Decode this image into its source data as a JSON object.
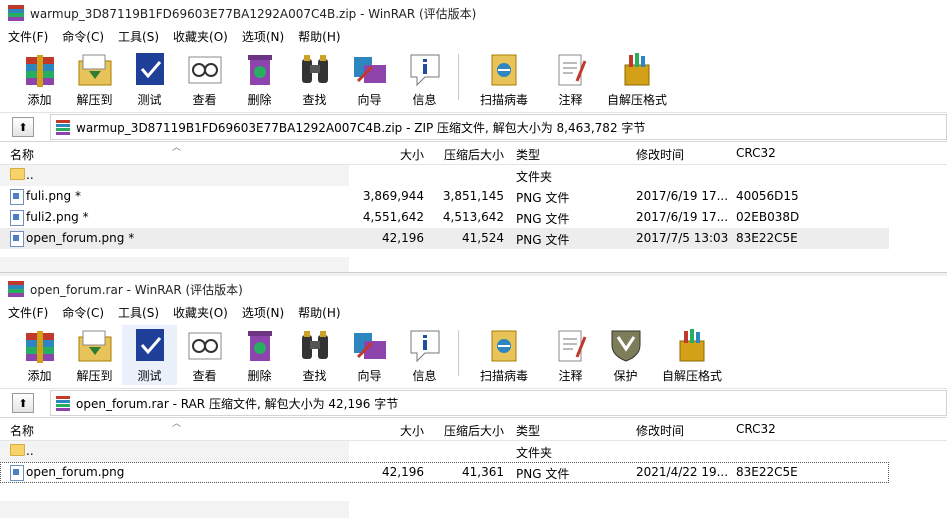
{
  "window1": {
    "title": "warmup_3D87119B1FD69603E77BA1292A007C4B.zip - WinRAR (评估版本)",
    "menu": [
      "文件(F)",
      "命令(C)",
      "工具(S)",
      "收藏夹(O)",
      "选项(N)",
      "帮助(H)"
    ],
    "toolbar": [
      "添加",
      "解压到",
      "测试",
      "查看",
      "删除",
      "查找",
      "向导",
      "信息",
      "扫描病毒",
      "注释",
      "自解压格式"
    ],
    "address": "warmup_3D87119B1FD69603E77BA1292A007C4B.zip - ZIP 压缩文件, 解包大小为 8,463,782 字节",
    "columns": {
      "name": "名称",
      "size": "大小",
      "packed": "压缩后大小",
      "type": "类型",
      "modified": "修改时间",
      "crc": "CRC32"
    },
    "rows": [
      {
        "name": "..",
        "size": "",
        "packed": "",
        "type": "文件夹",
        "modified": "",
        "crc": ""
      },
      {
        "name": "fuli.png *",
        "size": "3,869,944",
        "packed": "3,851,145",
        "type": "PNG 文件",
        "modified": "2017/6/19 17...",
        "crc": "40056D15"
      },
      {
        "name": "fuli2.png *",
        "size": "4,551,642",
        "packed": "4,513,642",
        "type": "PNG 文件",
        "modified": "2017/6/19 17...",
        "crc": "02EB038D"
      },
      {
        "name": "open_forum.png *",
        "size": "42,196",
        "packed": "41,524",
        "type": "PNG 文件",
        "modified": "2017/7/5 13:03",
        "crc": "83E22C5E"
      }
    ]
  },
  "window2": {
    "title": "open_forum.rar - WinRAR (评估版本)",
    "menu": [
      "文件(F)",
      "命令(C)",
      "工具(S)",
      "收藏夹(O)",
      "选项(N)",
      "帮助(H)"
    ],
    "toolbar": [
      "添加",
      "解压到",
      "测试",
      "查看",
      "删除",
      "查找",
      "向导",
      "信息",
      "扫描病毒",
      "注释",
      "保护",
      "自解压格式"
    ],
    "address": "open_forum.rar - RAR 压缩文件, 解包大小为 42,196 字节",
    "columns": {
      "name": "名称",
      "size": "大小",
      "packed": "压缩后大小",
      "type": "类型",
      "modified": "修改时间",
      "crc": "CRC32"
    },
    "rows": [
      {
        "name": "..",
        "size": "",
        "packed": "",
        "type": "文件夹",
        "modified": "",
        "crc": ""
      },
      {
        "name": "open_forum.png",
        "size": "42,196",
        "packed": "41,361",
        "type": "PNG 文件",
        "modified": "2021/4/22 19...",
        "crc": "83E22C5E"
      }
    ]
  },
  "colors": {
    "selection": "#ededed",
    "folder": "#f6d36a",
    "accent": "#4d7fc7"
  }
}
